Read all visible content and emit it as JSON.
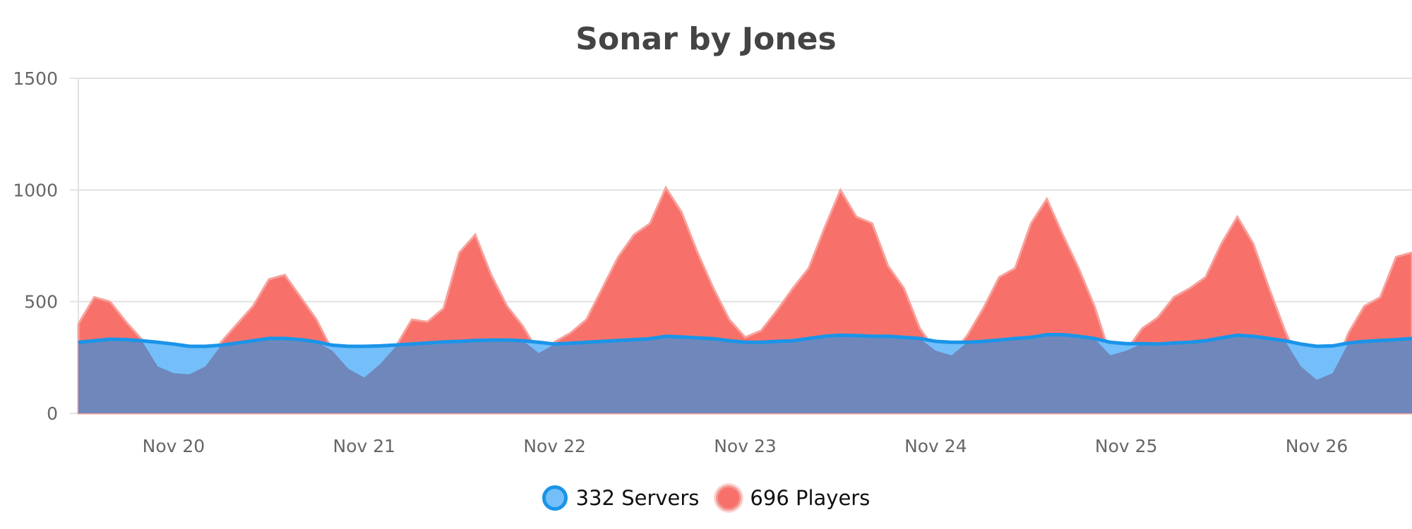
{
  "chart_data": {
    "type": "area",
    "title": "Sonar by Jones",
    "xlabel": "",
    "ylabel": "",
    "ylim": [
      0,
      1500
    ],
    "yticks": [
      "0",
      "500",
      "1000",
      "1500"
    ],
    "xticks": [
      "Nov 20",
      "Nov 21",
      "Nov 22",
      "Nov 23",
      "Nov 24",
      "Nov 25",
      "Nov 26"
    ],
    "xlim": [
      "Nov 19 12:00",
      "Nov 26 12:00"
    ],
    "grid": true,
    "legend_position": "bottom",
    "x": [
      "Nov 19 12:00",
      "Nov 19 14:00",
      "Nov 19 16:00",
      "Nov 19 18:00",
      "Nov 19 20:00",
      "Nov 19 22:00",
      "Nov 20 00:00",
      "Nov 20 02:00",
      "Nov 20 04:00",
      "Nov 20 06:00",
      "Nov 20 08:00",
      "Nov 20 10:00",
      "Nov 20 12:00",
      "Nov 20 14:00",
      "Nov 20 16:00",
      "Nov 20 18:00",
      "Nov 20 20:00",
      "Nov 20 22:00",
      "Nov 21 00:00",
      "Nov 21 02:00",
      "Nov 21 04:00",
      "Nov 21 06:00",
      "Nov 21 08:00",
      "Nov 21 10:00",
      "Nov 21 12:00",
      "Nov 21 14:00",
      "Nov 21 16:00",
      "Nov 21 18:00",
      "Nov 21 20:00",
      "Nov 21 22:00",
      "Nov 22 00:00",
      "Nov 22 02:00",
      "Nov 22 04:00",
      "Nov 22 06:00",
      "Nov 22 08:00",
      "Nov 22 10:00",
      "Nov 22 12:00",
      "Nov 22 14:00",
      "Nov 22 16:00",
      "Nov 22 18:00",
      "Nov 22 20:00",
      "Nov 22 22:00",
      "Nov 23 00:00",
      "Nov 23 02:00",
      "Nov 23 04:00",
      "Nov 23 06:00",
      "Nov 23 08:00",
      "Nov 23 10:00",
      "Nov 23 12:00",
      "Nov 23 14:00",
      "Nov 23 16:00",
      "Nov 23 18:00",
      "Nov 23 20:00",
      "Nov 23 22:00",
      "Nov 24 00:00",
      "Nov 24 02:00",
      "Nov 24 04:00",
      "Nov 24 06:00",
      "Nov 24 08:00",
      "Nov 24 10:00",
      "Nov 24 12:00",
      "Nov 24 14:00",
      "Nov 24 16:00",
      "Nov 24 18:00",
      "Nov 24 20:00",
      "Nov 24 22:00",
      "Nov 25 00:00",
      "Nov 25 02:00",
      "Nov 25 04:00",
      "Nov 25 06:00",
      "Nov 25 08:00",
      "Nov 25 10:00",
      "Nov 25 12:00",
      "Nov 25 14:00",
      "Nov 25 16:00",
      "Nov 25 18:00",
      "Nov 25 20:00",
      "Nov 25 22:00",
      "Nov 26 00:00",
      "Nov 26 02:00",
      "Nov 26 04:00",
      "Nov 26 06:00",
      "Nov 26 08:00",
      "Nov 26 10:00",
      "Nov 26 12:00"
    ],
    "series": [
      {
        "name": "332 Servers",
        "fill_color": "#74bffa",
        "line_color": "#1a94e8",
        "values": [
          318,
          325,
          332,
          330,
          325,
          318,
          310,
          300,
          300,
          305,
          315,
          325,
          335,
          335,
          330,
          320,
          305,
          300,
          300,
          302,
          306,
          310,
          315,
          320,
          322,
          326,
          328,
          328,
          325,
          318,
          310,
          314,
          318,
          322,
          326,
          330,
          334,
          345,
          342,
          338,
          334,
          325,
          318,
          318,
          322,
          325,
          335,
          345,
          350,
          348,
          345,
          345,
          340,
          335,
          322,
          318,
          318,
          322,
          328,
          335,
          340,
          352,
          352,
          345,
          335,
          318,
          312,
          312,
          310,
          315,
          318,
          325,
          338,
          350,
          345,
          335,
          325,
          310,
          300,
          302,
          315,
          322,
          326,
          330,
          335
        ]
      },
      {
        "name": "696 Players",
        "fill_color": "#f7716a",
        "line_color": "#f7a29d",
        "values": [
          400,
          520,
          500,
          410,
          330,
          210,
          180,
          175,
          210,
          320,
          400,
          480,
          600,
          620,
          520,
          420,
          280,
          200,
          160,
          220,
          300,
          420,
          410,
          470,
          720,
          800,
          620,
          480,
          390,
          270,
          320,
          360,
          420,
          560,
          700,
          800,
          850,
          1010,
          900,
          720,
          560,
          420,
          340,
          370,
          460,
          560,
          650,
          830,
          1000,
          880,
          850,
          660,
          560,
          380,
          280,
          260,
          350,
          470,
          610,
          650,
          850,
          960,
          800,
          650,
          480,
          260,
          280,
          380,
          430,
          520,
          560,
          610,
          760,
          880,
          760,
          560,
          370,
          210,
          150,
          180,
          360,
          480,
          520,
          700,
          720
        ]
      }
    ],
    "overlap_color": "#7087bb"
  }
}
